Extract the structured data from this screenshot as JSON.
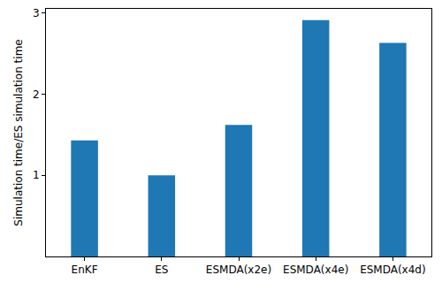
{
  "chart_data": {
    "type": "bar",
    "y_label": "Simulation time/ES simulation time",
    "categories": [
      "EnKF",
      "ES",
      "ESMDA(x2e)",
      "ESMDA(x4e)",
      "ESMDA(x4d)"
    ],
    "values": [
      1.43,
      1.0,
      1.62,
      2.91,
      2.63
    ],
    "color": "#1f77b4",
    "ylim": [
      0,
      3.05
    ],
    "yticks": [
      1,
      2,
      3
    ],
    "grid": false
  }
}
